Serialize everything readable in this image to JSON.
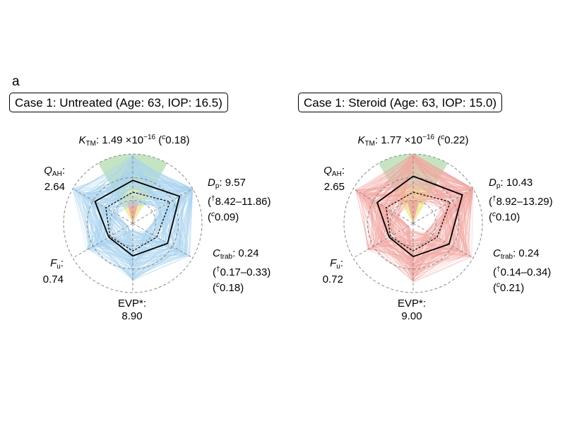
{
  "panel_label": "a",
  "colors": {
    "untreated_samples": "#a9d4ee",
    "steroid_samples": "#f3a7a2",
    "zone_green": "#9fd49a",
    "zone_yellow": "#f2f29a",
    "zone_red": "#f4a0a0",
    "grid": "#888888"
  },
  "chart_data": [
    {
      "type": "radar",
      "title": "Case 1: Untreated (Age: 63, IOP: 16.5)",
      "axes": [
        "K_TM",
        "D_p",
        "C_trab",
        "EVP*",
        "F_u",
        "Q_AH"
      ],
      "labels": {
        "ktm": {
          "sym": "K",
          "sub": "TM",
          "value": ": 1.49 ×10",
          "exp": "−16",
          "cv_open": " (",
          "cv": "0.18)"
        },
        "dp": {
          "sym": "D",
          "sub": "p",
          "value": ": 9.57",
          "range": "8.42–11.86)",
          "cv": "0.09)"
        },
        "ctrab": {
          "sym": "C",
          "sub": "trab",
          "value": ": 0.24",
          "range": "0.17–0.33)",
          "cv": "0.18)"
        },
        "evp": {
          "name": "EVP*:",
          "value": "8.90"
        },
        "fu": {
          "sym": "F",
          "sub": "u",
          "colon": ":",
          "value": "0.74"
        },
        "qah": {
          "sym": "Q",
          "sub": "AH",
          "colon": ":",
          "value": "2.64"
        }
      },
      "series": [
        {
          "name": "case",
          "values": [
            0.62,
            0.78,
            0.58,
            0.47,
            0.4,
            0.63
          ]
        },
        {
          "name": "reference",
          "values": [
            0.45,
            0.62,
            0.4,
            0.4,
            0.38,
            0.45
          ]
        }
      ]
    },
    {
      "type": "radar",
      "title": "Case 1: Steroid (Age: 63, IOP: 15.0)",
      "axes": [
        "K_TM",
        "D_p",
        "C_trab",
        "EVP*",
        "F_u",
        "Q_AH"
      ],
      "labels": {
        "ktm": {
          "sym": "K",
          "sub": "TM",
          "value": ": 1.77 ×10",
          "exp": "−16",
          "cv_open": " (",
          "cv": "0.22)"
        },
        "dp": {
          "sym": "D",
          "sub": "p",
          "value": ": 10.43",
          "range": "8.92–13.29)",
          "cv": "0.10)"
        },
        "ctrab": {
          "sym": "C",
          "sub": "trab",
          "value": ": 0.24",
          "range": "0.14–0.34)",
          "cv": "0.21)"
        },
        "evp": {
          "name": "EVP*:",
          "value": "9.00"
        },
        "fu": {
          "sym": "F",
          "sub": "u",
          "colon": ":",
          "value": "0.72"
        },
        "qah": {
          "sym": "Q",
          "sub": "AH",
          "colon": ":",
          "value": "2.65"
        }
      },
      "series": [
        {
          "name": "case",
          "values": [
            0.68,
            0.82,
            0.6,
            0.48,
            0.4,
            0.6
          ]
        },
        {
          "name": "reference",
          "values": [
            0.45,
            0.62,
            0.4,
            0.4,
            0.38,
            0.45
          ]
        }
      ]
    }
  ]
}
